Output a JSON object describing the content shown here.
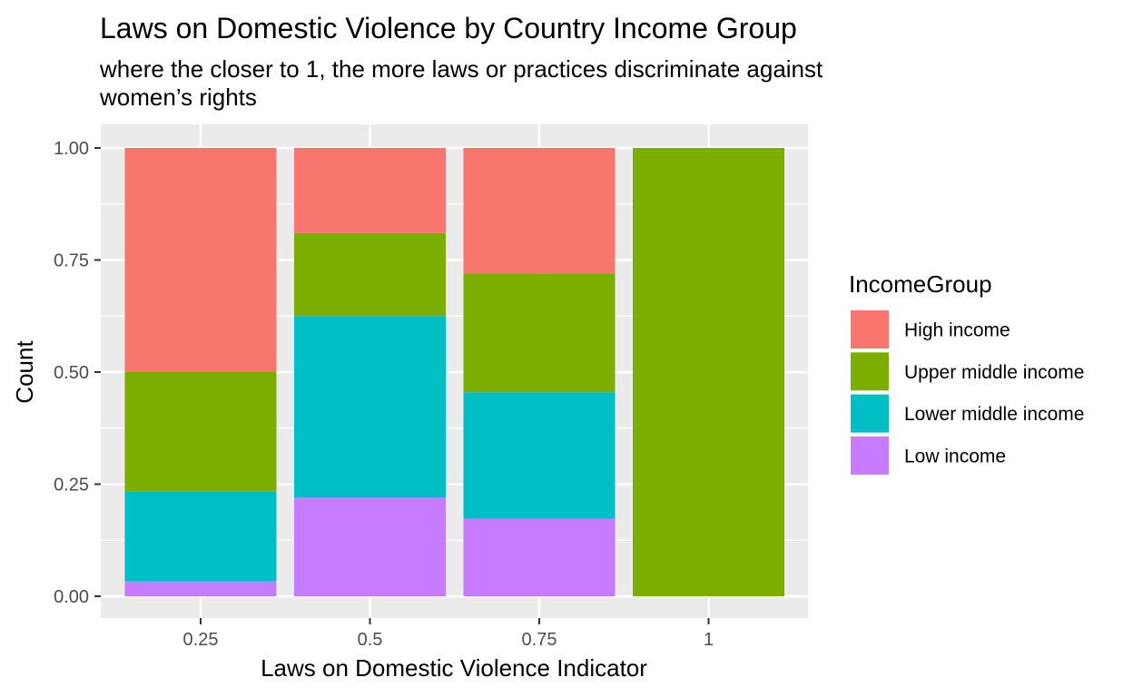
{
  "chart_data": {
    "type": "bar",
    "stacked": true,
    "title": "Laws on Domestic Violence by Country Income Group",
    "subtitle_lines": [
      "where the closer to 1, the more laws or practices discriminate against",
      "women’s rights"
    ],
    "xlabel": "Laws on Domestic Violence Indicator",
    "ylabel": "Count",
    "categories": [
      "0.25",
      "0.5",
      "0.75",
      "1"
    ],
    "y_ticks": [
      "0.00",
      "0.25",
      "0.50",
      "0.75",
      "1.00"
    ],
    "ylim": [
      0,
      1
    ],
    "grid": true,
    "legend_position": "right",
    "legend_title": "IncomeGroup",
    "series": [
      {
        "name": "High income",
        "color": "#F8766D",
        "values": [
          0.5,
          0.19,
          0.28,
          0.0
        ]
      },
      {
        "name": "Upper middle income",
        "color": "#7CAE00",
        "values": [
          0.267,
          0.185,
          0.265,
          1.0
        ]
      },
      {
        "name": "Lower middle income",
        "color": "#00BFC4",
        "values": [
          0.2,
          0.405,
          0.282,
          0.0
        ]
      },
      {
        "name": "Low income",
        "color": "#C77CFF",
        "values": [
          0.033,
          0.22,
          0.173,
          0.0
        ]
      }
    ],
    "panel_background": "#EBEBEB",
    "grid_color": "#FFFFFF"
  }
}
